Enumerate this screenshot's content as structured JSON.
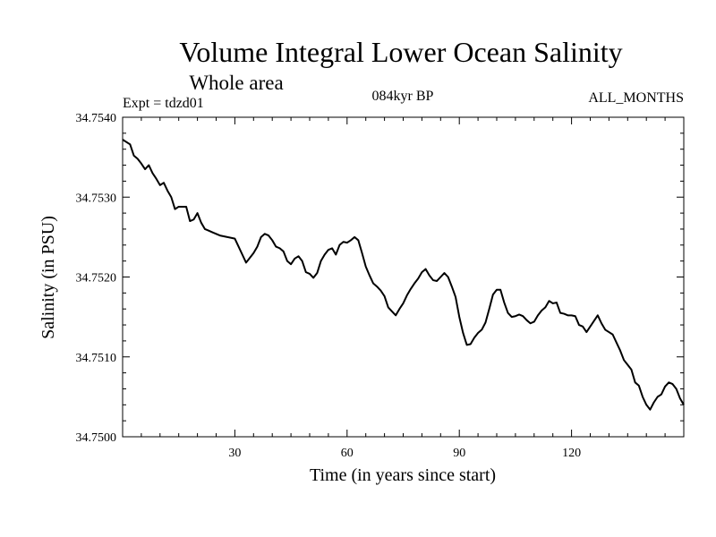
{
  "chart_data": {
    "type": "line",
    "title": "Volume Integral Lower Ocean Salinity",
    "subtitle": "Whole area",
    "expt_label": "Expt = tdzd01",
    "period_label": "084kyr BP",
    "months_label": "ALL_MONTHS",
    "xlabel": "Time (in years since start)",
    "ylabel": "Salinity (in PSU)",
    "xlim": [
      0,
      150
    ],
    "ylim": [
      34.75,
      34.754
    ],
    "x_ticks": [
      30,
      60,
      90,
      120
    ],
    "x_tick_labels": [
      "30",
      "60",
      "90",
      "120"
    ],
    "y_ticks": [
      34.75,
      34.751,
      34.752,
      34.753,
      34.754
    ],
    "y_tick_labels": [
      "34.7500",
      "34.7510",
      "34.7520",
      "34.7530",
      "34.7540"
    ],
    "grid": false,
    "series": [
      {
        "name": "Salinity",
        "x": [
          0,
          2,
          3,
          4,
          5,
          6,
          7,
          8,
          9,
          10,
          11,
          12,
          13,
          14,
          15,
          16,
          17,
          18,
          19,
          20,
          21,
          22,
          23,
          24,
          26,
          28,
          30,
          31,
          32,
          33,
          34,
          35,
          36,
          37,
          38,
          39,
          40,
          41,
          42,
          43,
          44,
          45,
          46,
          47,
          48,
          49,
          50,
          51,
          52,
          53,
          54,
          55,
          56,
          57,
          58,
          59,
          60,
          61,
          62,
          63,
          64,
          65,
          66,
          67,
          68,
          69,
          70,
          71,
          72,
          73,
          74,
          75,
          76,
          77,
          78,
          79,
          80,
          81,
          82,
          83,
          84,
          85,
          86,
          87,
          88,
          89,
          90,
          91,
          92,
          93,
          94,
          95,
          96,
          97,
          98,
          99,
          100,
          101,
          102,
          103,
          104,
          105,
          106,
          107,
          108,
          109,
          110,
          111,
          112,
          113,
          114,
          115,
          116,
          117,
          118,
          119,
          120,
          121,
          122,
          123,
          124,
          125,
          126,
          127,
          128,
          129,
          130,
          131,
          132,
          133,
          134,
          135,
          136,
          137,
          138,
          139,
          140,
          141,
          142,
          143,
          144,
          145,
          146,
          147,
          148,
          149,
          150
        ],
        "values": [
          34.75372,
          34.75366,
          34.75352,
          34.75348,
          34.75342,
          34.75335,
          34.7534,
          34.7533,
          34.75323,
          34.75315,
          34.75318,
          34.75308,
          34.753,
          34.75285,
          34.75288,
          34.75288,
          34.75288,
          34.7527,
          34.75272,
          34.7528,
          34.75268,
          34.7526,
          34.75258,
          34.75256,
          34.75252,
          34.7525,
          34.75248,
          34.75238,
          34.75228,
          34.75218,
          34.75224,
          34.7523,
          34.75238,
          34.7525,
          34.75254,
          34.75252,
          34.75246,
          34.75238,
          34.75236,
          34.75232,
          34.7522,
          34.75216,
          34.75223,
          34.75226,
          34.7522,
          34.75206,
          34.75204,
          34.75199,
          34.75205,
          34.7522,
          34.75228,
          34.75234,
          34.75236,
          34.75228,
          34.7524,
          34.75244,
          34.75243,
          34.75246,
          34.7525,
          34.75246,
          34.7523,
          34.75213,
          34.75202,
          34.75192,
          34.75188,
          34.75183,
          34.75176,
          34.75162,
          34.75157,
          34.75152,
          34.7516,
          34.75167,
          34.75177,
          34.75185,
          34.75192,
          34.75198,
          34.75206,
          34.7521,
          34.75202,
          34.75196,
          34.75195,
          34.752,
          34.75205,
          34.752,
          34.75188,
          34.75175,
          34.7515,
          34.7513,
          34.75115,
          34.75116,
          34.75124,
          34.7513,
          34.75134,
          34.75143,
          34.7516,
          34.75178,
          34.75184,
          34.75184,
          34.75168,
          34.75155,
          34.7515,
          34.75151,
          34.75153,
          34.75151,
          34.75146,
          34.75142,
          34.75144,
          34.75152,
          34.75158,
          34.75162,
          34.7517,
          34.75167,
          34.75168,
          34.75155,
          34.75154,
          34.75152,
          34.75152,
          34.75151,
          34.7514,
          34.75138,
          34.75131,
          34.75138,
          34.75145,
          34.75152,
          34.75142,
          34.75134,
          34.75131,
          34.75128,
          34.75118,
          34.75108,
          34.75096,
          34.7509,
          34.75084,
          34.75068,
          34.75064,
          34.7505,
          34.7504,
          34.75034,
          34.75043,
          34.7505,
          34.75053,
          34.75063,
          34.75068,
          34.75066,
          34.7506,
          34.75048,
          34.7504
        ]
      }
    ]
  }
}
